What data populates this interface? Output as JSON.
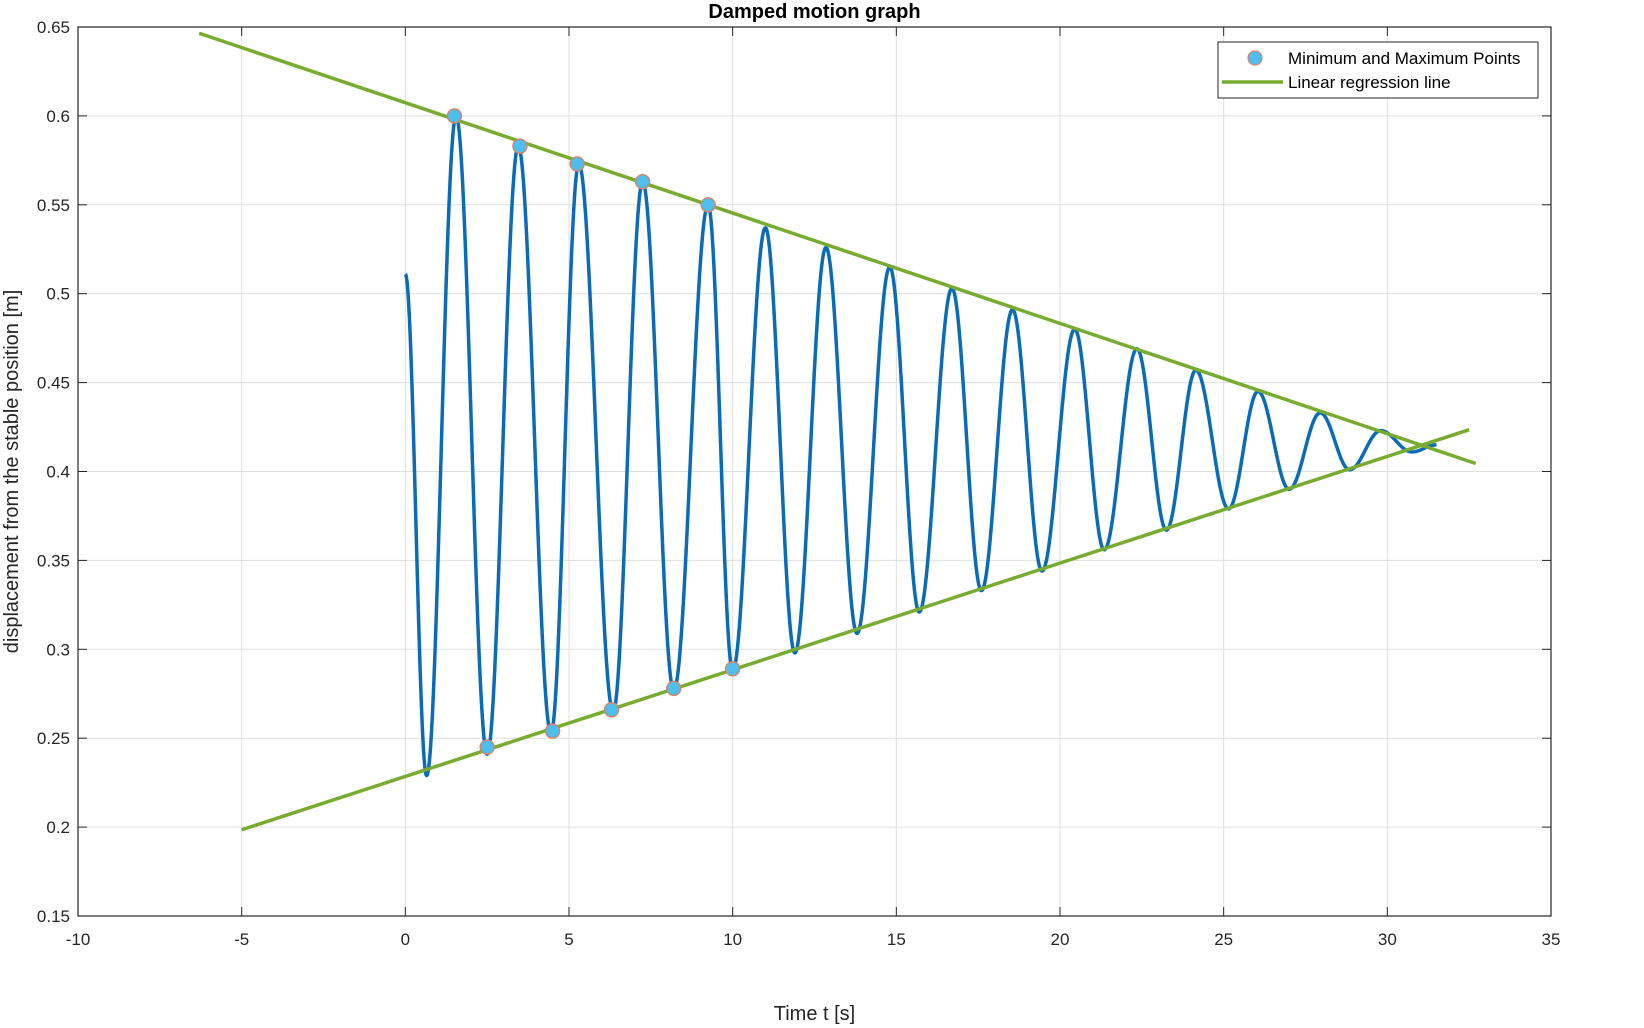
{
  "chart_data": {
    "type": "line",
    "title": "Damped motion graph",
    "xlabel": "Time  t [s]",
    "ylabel": "displacement from the stable position [m]",
    "xlim": [
      -10,
      35
    ],
    "ylim": [
      0.15,
      0.65
    ],
    "xticks": [
      -10,
      -5,
      0,
      5,
      10,
      15,
      20,
      25,
      30,
      35
    ],
    "yticks": [
      0.15,
      0.2,
      0.25,
      0.3,
      0.35,
      0.4,
      0.45,
      0.5,
      0.55,
      0.6,
      0.65
    ],
    "xtick_labels": [
      "-10",
      "-5",
      "0",
      "5",
      "10",
      "15",
      "20",
      "25",
      "30",
      "35"
    ],
    "ytick_labels": [
      "0.15",
      "0.2",
      "0.25",
      "0.3",
      "0.35",
      "0.4",
      "0.45",
      "0.5",
      "0.55",
      "0.6",
      "0.65"
    ],
    "grid": true,
    "legend_position": "top-right",
    "colors": {
      "signal": "#0a6bb8",
      "regression": "#77ac30",
      "marker_fill": "#4dbeee",
      "marker_edge": "#d9826a"
    },
    "series": [
      {
        "style": "line",
        "t_start": 0,
        "t_end": 31.5,
        "start_value": 0.511,
        "peaks": [
          [
            0.65,
            0.229
          ],
          [
            1.55,
            0.6
          ],
          [
            2.5,
            0.241
          ],
          [
            3.45,
            0.583
          ],
          [
            4.45,
            0.253
          ],
          [
            5.3,
            0.573
          ],
          [
            6.35,
            0.265
          ],
          [
            7.25,
            0.563
          ],
          [
            8.2,
            0.277
          ],
          [
            9.25,
            0.55
          ],
          [
            10.0,
            0.288
          ],
          [
            11.0,
            0.537
          ],
          [
            11.9,
            0.298
          ],
          [
            12.85,
            0.526
          ],
          [
            13.8,
            0.309
          ],
          [
            14.8,
            0.515
          ],
          [
            15.7,
            0.321
          ],
          [
            16.7,
            0.503
          ],
          [
            17.6,
            0.333
          ],
          [
            18.55,
            0.491
          ],
          [
            19.45,
            0.344
          ],
          [
            20.45,
            0.48
          ],
          [
            21.35,
            0.356
          ],
          [
            22.35,
            0.469
          ],
          [
            23.25,
            0.367
          ],
          [
            24.15,
            0.457
          ],
          [
            25.15,
            0.379
          ],
          [
            26.05,
            0.445
          ],
          [
            27.0,
            0.39
          ],
          [
            27.95,
            0.433
          ],
          [
            28.85,
            0.401
          ],
          [
            29.8,
            0.423
          ],
          [
            30.75,
            0.411
          ],
          [
            31.5,
            0.415
          ]
        ]
      },
      {
        "name": "Minimum and Maximum Points",
        "style": "markers",
        "points": [
          [
            1.5,
            0.6
          ],
          [
            3.5,
            0.583
          ],
          [
            5.25,
            0.573
          ],
          [
            7.25,
            0.563
          ],
          [
            9.25,
            0.55
          ],
          [
            2.5,
            0.245
          ],
          [
            4.5,
            0.254
          ],
          [
            6.3,
            0.266
          ],
          [
            8.2,
            0.278
          ],
          [
            10.0,
            0.289
          ]
        ]
      },
      {
        "name": "Linear regression line",
        "style": "line",
        "points": [
          [
            -6.3,
            0.6465
          ],
          [
            32.7,
            0.4045
          ]
        ]
      },
      {
        "style": "line",
        "points": [
          [
            -5,
            0.1985
          ],
          [
            32.5,
            0.4235
          ]
        ]
      }
    ]
  }
}
